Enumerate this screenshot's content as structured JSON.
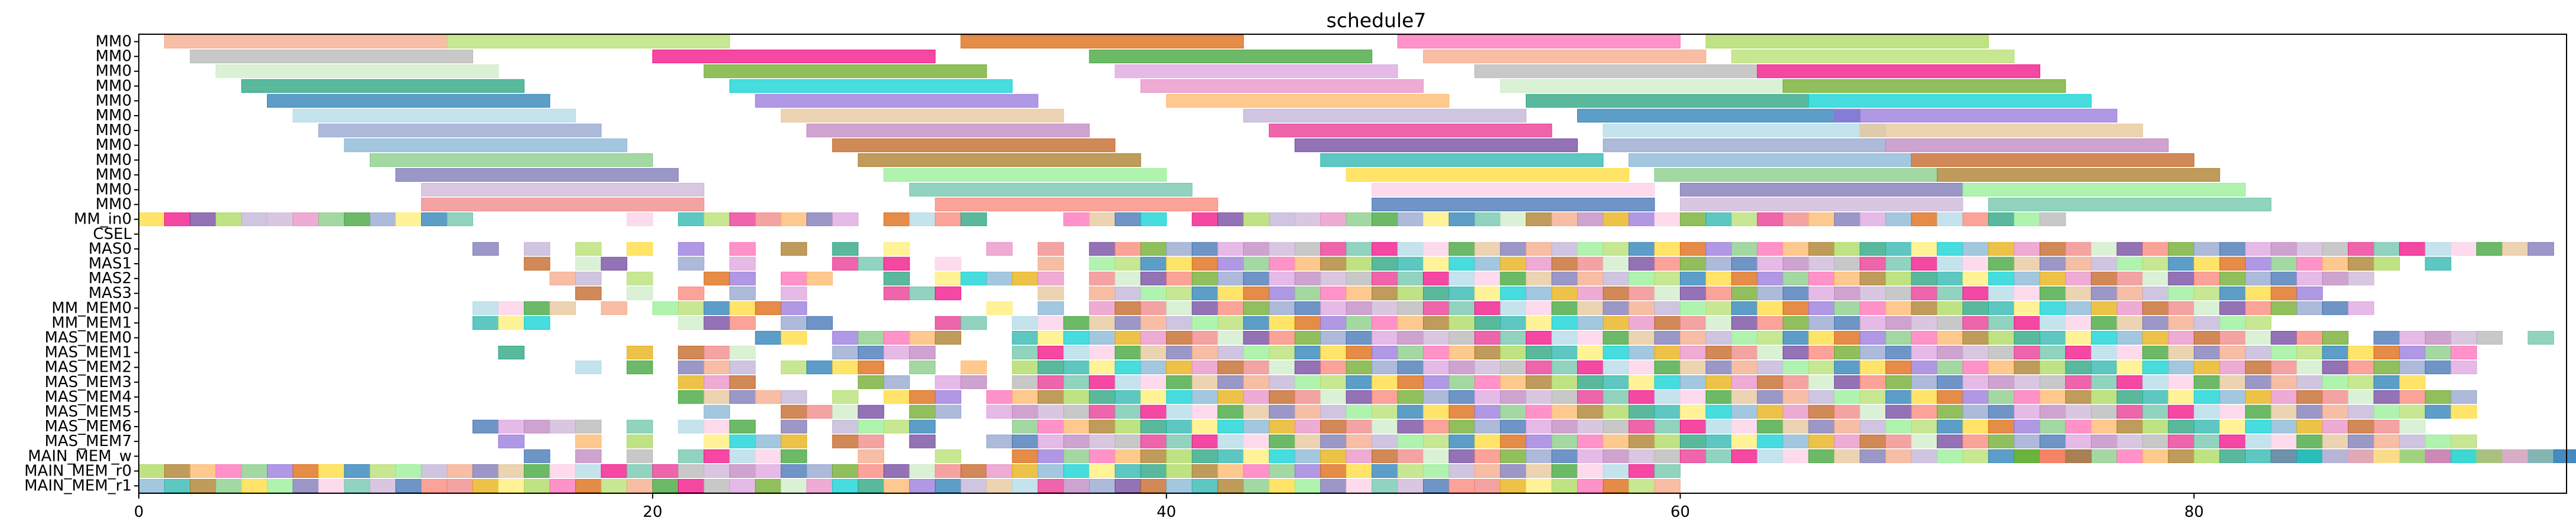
{
  "chart_data": {
    "type": "gantt",
    "title": "schedule7",
    "xlabel": "",
    "ylabel": "",
    "xlim": [
      0,
      94.5
    ],
    "x_ticks": [
      0,
      20,
      40,
      60,
      80
    ],
    "grid": false,
    "rows": [
      "MM0",
      "MM0",
      "MM0",
      "MM0",
      "MM0",
      "MM0",
      "MM0",
      "MM0",
      "MM0",
      "MM0",
      "MM0",
      "MM0",
      "MM_in0",
      "CSEL",
      "MAS0",
      "MAS1",
      "MAS2",
      "MAS3",
      "MM_MEM0",
      "MM_MEM1",
      "MAS_MEM0",
      "MAS_MEM1",
      "MAS_MEM2",
      "MAS_MEM3",
      "MAS_MEM4",
      "MAS_MEM5",
      "MAS_MEM6",
      "MAS_MEM7",
      "MAIN_MEM_w",
      "MAIN_MEM_r0",
      "MAIN_MEM_r1"
    ],
    "palette": [
      "#f4a582",
      "#66c2a5",
      "#8da0cb",
      "#e78ac3",
      "#a6d854",
      "#ffd92f",
      "#e5c494",
      "#b3b3b3",
      "#fb8072",
      "#80b1d3",
      "#fdb462",
      "#b3de69",
      "#fccde5",
      "#bc80bd",
      "#ccebc5",
      "#ffed6f",
      "#7fc97f",
      "#beaed4",
      "#f0027f",
      "#386cb0",
      "#bf5b17",
      "#1b9e77",
      "#d95f02",
      "#7570b3",
      "#e7298a",
      "#66a61e",
      "#e6ab02",
      "#a6761d",
      "#1f78b4",
      "#33a02c",
      "#cab2d6",
      "#6a3d9a",
      "#00ced1",
      "#ff69b4",
      "#90ee90",
      "#add8e6",
      "#dda0dd",
      "#f08080",
      "#20b2aa",
      "#9370db"
    ],
    "mm0_bars": [
      [
        [
          1,
          12
        ],
        [
          12,
          23
        ],
        [
          32,
          43
        ],
        [
          49,
          60
        ],
        [
          61,
          72
        ]
      ],
      [
        [
          2,
          13
        ],
        [
          20,
          31
        ],
        [
          37,
          48
        ],
        [
          50,
          61
        ],
        [
          62,
          73
        ]
      ],
      [
        [
          3,
          14
        ],
        [
          22,
          33
        ],
        [
          38,
          49
        ],
        [
          52,
          63
        ],
        [
          63,
          74
        ]
      ],
      [
        [
          4,
          15
        ],
        [
          23,
          34
        ],
        [
          39,
          50
        ],
        [
          53,
          64
        ],
        [
          64,
          75
        ]
      ],
      [
        [
          5,
          16
        ],
        [
          24,
          35
        ],
        [
          40,
          51
        ],
        [
          54,
          65
        ],
        [
          65,
          76
        ]
      ],
      [
        [
          6,
          17
        ],
        [
          25,
          36
        ],
        [
          43,
          54
        ],
        [
          56,
          67
        ],
        [
          66,
          77
        ]
      ],
      [
        [
          7,
          18
        ],
        [
          26,
          37
        ],
        [
          44,
          55
        ],
        [
          57,
          68
        ],
        [
          67,
          78
        ]
      ],
      [
        [
          8,
          19
        ],
        [
          27,
          38
        ],
        [
          45,
          56
        ],
        [
          57,
          68
        ],
        [
          68,
          79
        ]
      ],
      [
        [
          9,
          20
        ],
        [
          28,
          39
        ],
        [
          46,
          57
        ],
        [
          58,
          69
        ],
        [
          69,
          80
        ]
      ],
      [
        [
          10,
          21
        ],
        [
          29,
          40
        ],
        [
          47,
          58
        ],
        [
          59,
          70
        ],
        [
          70,
          81
        ]
      ],
      [
        [
          11,
          22
        ],
        [
          30,
          41
        ],
        [
          48,
          59
        ],
        [
          60,
          71
        ],
        [
          71,
          82
        ]
      ],
      [
        [
          11,
          22
        ],
        [
          31,
          42
        ],
        [
          48,
          59
        ],
        [
          60,
          71
        ],
        [
          72,
          83
        ]
      ]
    ],
    "mm_in0_ops": [
      0,
      1,
      2,
      3,
      4,
      5,
      6,
      7,
      8,
      9,
      10,
      11,
      12,
      19,
      21,
      22,
      23,
      24,
      25,
      26,
      27,
      29,
      30,
      31,
      32,
      36,
      37,
      38,
      39,
      41,
      42,
      43,
      44,
      45,
      46,
      47,
      48,
      49,
      50,
      51,
      52,
      53,
      54,
      55,
      56,
      57,
      58,
      59,
      60,
      61,
      62,
      63,
      64,
      65,
      66,
      67,
      68,
      69,
      70,
      71,
      72,
      73,
      74
    ],
    "csel_ops": [],
    "sparse_row_ops": [
      [
        13,
        15,
        17,
        19,
        21,
        23,
        25,
        27,
        29,
        33,
        35,
        37,
        38,
        39,
        40,
        41,
        42,
        43,
        44,
        45,
        46,
        47,
        48,
        49,
        50,
        51,
        52,
        53,
        54,
        55,
        56,
        57,
        58,
        59,
        60,
        61,
        62,
        63,
        64,
        65,
        66,
        67,
        68,
        69,
        70,
        71,
        72,
        73,
        74,
        75,
        76,
        77,
        78,
        79,
        80,
        81,
        82,
        83,
        84,
        85,
        86,
        87,
        88,
        89,
        90,
        91,
        92,
        93
      ],
      [
        15,
        17,
        18,
        21,
        23,
        27,
        28,
        29,
        31,
        35,
        37,
        38,
        39,
        40,
        41,
        42,
        43,
        44,
        45,
        46,
        47,
        48,
        49,
        50,
        51,
        52,
        53,
        54,
        55,
        56,
        57,
        58,
        59,
        60,
        61,
        62,
        63,
        64,
        65,
        66,
        67,
        68,
        69,
        70,
        71,
        72,
        73,
        74,
        75,
        76,
        77,
        78,
        79,
        80,
        81,
        82,
        83,
        84,
        85,
        86,
        87,
        89
      ],
      [
        16,
        17,
        19,
        22,
        23,
        25,
        26,
        29,
        31,
        32,
        33,
        34,
        35,
        37,
        38,
        39,
        40,
        41,
        42,
        43,
        44,
        45,
        46,
        47,
        48,
        49,
        50,
        51,
        52,
        53,
        54,
        55,
        56,
        57,
        58,
        59,
        60,
        61,
        62,
        63,
        64,
        65,
        66,
        67,
        68,
        69,
        70,
        71,
        72,
        73,
        74,
        75,
        76,
        77,
        78,
        79,
        80,
        81,
        82,
        83,
        84,
        85,
        86
      ],
      [
        17,
        19,
        21,
        23,
        25,
        29,
        30,
        31,
        35,
        37,
        38,
        39,
        40,
        41,
        42,
        43,
        44,
        45,
        46,
        47,
        48,
        49,
        50,
        51,
        52,
        53,
        54,
        55,
        56,
        57,
        58,
        59,
        60,
        61,
        62,
        63,
        64,
        65,
        66,
        67,
        68,
        69,
        70,
        71,
        72,
        73,
        74,
        75,
        76,
        77,
        78,
        79,
        80,
        81,
        82,
        83,
        84
      ],
      [
        13,
        14,
        15,
        16,
        18,
        20,
        21,
        22,
        23,
        24,
        25,
        33,
        35,
        37,
        38,
        39,
        40,
        41,
        42,
        43,
        44,
        45,
        46,
        47,
        48,
        49,
        50,
        51,
        52,
        53,
        54,
        55,
        56,
        57,
        58,
        59,
        60,
        61,
        62,
        63,
        64,
        65,
        66,
        67,
        68,
        69,
        70,
        71,
        72,
        73,
        74,
        75,
        76,
        77,
        78,
        79,
        80,
        81,
        82,
        83,
        84,
        85,
        86
      ],
      [
        13,
        14,
        15,
        21,
        22,
        23,
        25,
        26,
        31,
        32,
        34,
        35,
        36,
        37,
        38,
        39,
        40,
        41,
        42,
        43,
        44,
        45,
        46,
        47,
        48,
        49,
        50,
        51,
        52,
        53,
        54,
        55,
        56,
        57,
        58,
        59,
        60,
        61,
        62,
        63,
        64,
        65,
        66,
        67,
        68,
        69,
        70,
        71,
        72,
        73,
        74,
        75,
        76,
        77,
        78,
        79,
        80,
        81,
        82
      ],
      [
        24,
        25,
        27,
        28,
        29,
        30,
        31,
        34,
        35,
        36,
        37,
        38,
        39,
        40,
        41,
        42,
        43,
        44,
        45,
        46,
        47,
        48,
        49,
        50,
        51,
        52,
        53,
        54,
        55,
        56,
        57,
        58,
        59,
        60,
        61,
        62,
        63,
        64,
        65,
        66,
        67,
        68,
        69,
        70,
        71,
        72,
        73,
        74,
        75,
        76,
        77,
        78,
        79,
        80,
        81,
        82,
        83,
        84,
        85,
        87,
        88,
        89,
        90,
        91,
        93
      ],
      [
        14,
        19,
        21,
        22,
        23,
        27,
        28,
        29,
        30,
        34,
        35,
        36,
        37,
        38,
        39,
        40,
        41,
        42,
        43,
        44,
        45,
        46,
        47,
        48,
        49,
        50,
        51,
        52,
        53,
        54,
        55,
        56,
        57,
        58,
        59,
        60,
        61,
        62,
        63,
        64,
        65,
        66,
        67,
        68,
        69,
        70,
        71,
        72,
        73,
        74,
        75,
        76,
        77,
        78,
        79,
        80,
        81,
        82,
        83,
        84,
        85,
        86,
        87,
        88,
        89,
        90
      ],
      [
        17,
        19,
        21,
        22,
        23,
        25,
        26,
        27,
        28,
        30,
        32,
        34,
        35,
        36,
        37,
        38,
        39,
        40,
        41,
        42,
        43,
        44,
        45,
        46,
        47,
        48,
        49,
        50,
        51,
        52,
        53,
        54,
        55,
        56,
        57,
        58,
        59,
        60,
        61,
        62,
        63,
        64,
        65,
        66,
        67,
        68,
        69,
        70,
        71,
        72,
        73,
        74,
        75,
        76,
        77,
        78,
        79,
        80,
        81,
        82,
        83,
        84,
        85,
        86,
        87,
        88,
        89,
        90
      ],
      [
        21,
        22,
        23,
        28,
        29,
        31,
        32,
        34,
        35,
        36,
        37,
        38,
        39,
        40,
        41,
        42,
        43,
        44,
        45,
        46,
        47,
        48,
        49,
        50,
        51,
        52,
        53,
        54,
        55,
        56,
        57,
        58,
        59,
        60,
        61,
        62,
        63,
        64,
        65,
        66,
        67,
        68,
        69,
        70,
        71,
        72,
        73,
        74,
        75,
        76,
        77,
        78,
        79,
        80,
        81,
        82,
        83,
        84,
        85,
        86,
        87,
        88
      ],
      [
        21,
        22,
        23,
        24,
        25,
        27,
        29,
        30,
        31,
        33,
        34,
        35,
        36,
        37,
        38,
        39,
        40,
        41,
        42,
        43,
        44,
        45,
        46,
        47,
        48,
        49,
        50,
        51,
        52,
        53,
        54,
        55,
        56,
        57,
        58,
        59,
        60,
        61,
        62,
        63,
        64,
        65,
        66,
        67,
        68,
        69,
        70,
        71,
        72,
        73,
        74,
        75,
        76,
        77,
        78,
        79,
        80,
        81,
        82,
        83,
        84,
        85,
        86,
        87,
        88,
        89,
        90
      ],
      [
        22,
        25,
        26,
        27,
        28,
        30,
        31,
        33,
        34,
        35,
        36,
        37,
        38,
        39,
        40,
        41,
        42,
        43,
        44,
        45,
        46,
        47,
        48,
        49,
        50,
        51,
        52,
        53,
        54,
        55,
        56,
        57,
        58,
        59,
        60,
        61,
        62,
        63,
        64,
        65,
        66,
        67,
        68,
        69,
        70,
        71,
        72,
        73,
        74,
        75,
        76,
        77,
        78,
        79,
        80,
        81,
        82,
        83,
        84,
        85,
        86,
        87,
        88,
        89,
        90
      ],
      [
        13,
        14,
        15,
        16,
        17,
        19,
        21,
        22,
        23,
        25,
        27,
        28,
        29,
        30,
        34,
        35,
        36,
        37,
        38,
        39,
        40,
        41,
        42,
        43,
        44,
        45,
        46,
        47,
        48,
        49,
        50,
        51,
        52,
        53,
        54,
        55,
        56,
        57,
        58,
        59,
        60,
        61,
        62,
        63,
        64,
        65,
        66,
        67,
        68,
        69,
        70,
        71,
        72,
        73,
        74,
        75,
        76,
        77,
        78,
        79,
        80,
        81,
        82,
        83,
        84,
        85,
        86,
        87,
        88
      ],
      [
        14,
        17,
        19,
        22,
        23,
        24,
        25,
        27,
        28,
        30,
        33,
        34,
        35,
        36,
        37,
        38,
        39,
        40,
        41,
        42,
        43,
        44,
        45,
        46,
        47,
        48,
        49,
        50,
        51,
        52,
        53,
        54,
        55,
        56,
        57,
        58,
        59,
        60,
        61,
        62,
        63,
        64,
        65,
        66,
        67,
        68,
        69,
        70,
        71,
        72,
        73,
        74,
        75,
        76,
        77,
        78,
        79,
        80,
        81,
        82,
        83,
        84,
        85,
        86,
        87,
        88,
        89,
        90
      ],
      [
        15,
        17,
        19,
        21,
        22,
        23,
        24,
        25,
        28,
        31,
        34,
        35,
        36,
        37,
        38,
        39,
        40,
        41,
        42,
        43,
        44,
        45,
        46,
        47,
        48,
        49,
        50,
        51,
        52,
        53,
        54,
        55,
        56,
        57,
        58,
        59,
        60,
        61,
        62,
        63,
        64,
        65,
        66,
        67,
        68,
        69,
        70,
        71,
        72,
        73,
        74,
        75,
        76,
        77,
        78,
        79,
        80,
        81,
        82,
        83,
        84,
        85,
        86,
        87,
        88,
        89,
        90,
        91,
        92,
        93,
        94
      ]
    ],
    "main_mem_w_ops": [
      73,
      74,
      75,
      83,
      84,
      85,
      86,
      87,
      88,
      89,
      90,
      91,
      92,
      93,
      94
    ],
    "main_mem_r0_ops": [
      0,
      1,
      2,
      3,
      4,
      5,
      6,
      7,
      8,
      9,
      10,
      11,
      12,
      13,
      14,
      15,
      16,
      17,
      18,
      19,
      20,
      21,
      22,
      23,
      24,
      25,
      26,
      27,
      28,
      29,
      30,
      31,
      32,
      33,
      34,
      35,
      36,
      37,
      38,
      39,
      40,
      41,
      42,
      43,
      44,
      45,
      46,
      47,
      48,
      49,
      50,
      51,
      52,
      53,
      54,
      55,
      56,
      57,
      58,
      59
    ],
    "main_mem_r1_ops": [
      0,
      1,
      2,
      3,
      4,
      5,
      6,
      7,
      8,
      9,
      10,
      11,
      12,
      13,
      14,
      15,
      16,
      17,
      18,
      19,
      20,
      21,
      22,
      23,
      24,
      25,
      26,
      27,
      28,
      29,
      30,
      31,
      32,
      33,
      34,
      35,
      36,
      37,
      38,
      39,
      40,
      41,
      42,
      43,
      44,
      45,
      46,
      47,
      48,
      49,
      50,
      51,
      52,
      53,
      54,
      55,
      56,
      57,
      58,
      59
    ]
  }
}
